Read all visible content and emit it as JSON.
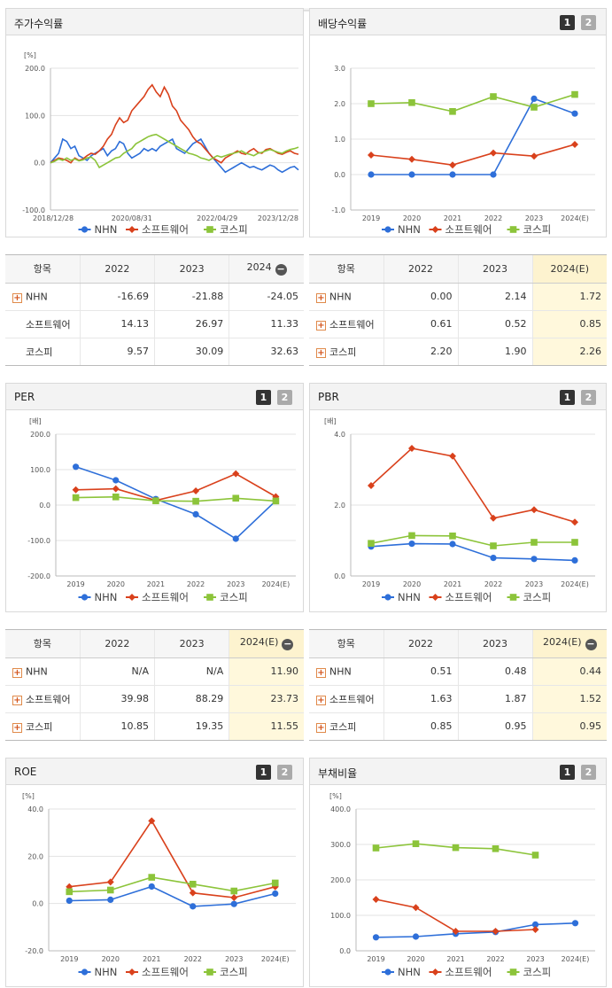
{
  "colors": {
    "NHN": "#2e6fd9",
    "소프트웨어": "#d9411c",
    "코스피": "#8cc43a"
  },
  "charts": {
    "stock": {
      "title": "주가수익률",
      "unit": "[%]",
      "chart_data": {
        "type": "line",
        "title": "주가수익률",
        "ylim": [
          -100,
          200
        ],
        "yticks": [
          "200.0",
          "100.0",
          "0.0",
          "-100.0"
        ],
        "xtick_labels": [
          "2018/12/28",
          "2020/08/31",
          "2022/04/29",
          "2023/12/28"
        ],
        "xtick_index": [
          0,
          20,
          41,
          61
        ],
        "series": [
          {
            "name": "NHN",
            "values": [
              0,
              10,
              20,
              50,
              45,
              30,
              35,
              15,
              10,
              5,
              15,
              20,
              25,
              30,
              15,
              25,
              30,
              45,
              40,
              20,
              10,
              15,
              20,
              30,
              25,
              30,
              25,
              35,
              40,
              45,
              50,
              30,
              25,
              20,
              30,
              40,
              45,
              50,
              35,
              20,
              10,
              0,
              -10,
              -20,
              -15,
              -10,
              -5,
              0,
              -5,
              -10,
              -8,
              -12,
              -15,
              -10,
              -5,
              -8,
              -15,
              -20,
              -15,
              -10,
              -8,
              -15
            ]
          },
          {
            "name": "소프트웨어",
            "values": [
              0,
              5,
              10,
              8,
              5,
              0,
              10,
              5,
              8,
              15,
              20,
              18,
              25,
              35,
              50,
              60,
              80,
              95,
              85,
              90,
              110,
              120,
              130,
              140,
              155,
              165,
              150,
              140,
              160,
              145,
              120,
              110,
              90,
              80,
              70,
              55,
              45,
              40,
              30,
              20,
              10,
              5,
              0,
              10,
              15,
              20,
              25,
              20,
              18,
              25,
              30,
              22,
              20,
              28,
              30,
              25,
              20,
              18,
              22,
              25,
              20,
              18
            ]
          },
          {
            "name": "코스피",
            "values": [
              0,
              3,
              8,
              5,
              10,
              5,
              8,
              4,
              6,
              10,
              12,
              5,
              -10,
              -5,
              0,
              5,
              10,
              12,
              20,
              25,
              30,
              40,
              45,
              50,
              55,
              58,
              60,
              55,
              50,
              45,
              40,
              35,
              30,
              25,
              20,
              18,
              15,
              10,
              8,
              5,
              10,
              15,
              12,
              15,
              18,
              20,
              22,
              25,
              20,
              18,
              15,
              20,
              22,
              25,
              28,
              25,
              22,
              20,
              25,
              28,
              30,
              33
            ]
          }
        ]
      }
    },
    "dividend": {
      "title": "배당수익률",
      "pages": [
        "1",
        "2"
      ],
      "chart_data": {
        "type": "line",
        "title": "배당수익률",
        "categories": [
          "2019",
          "2020",
          "2021",
          "2022",
          "2023",
          "2024(E)"
        ],
        "ylim": [
          -1,
          3
        ],
        "yticks": [
          "3.0",
          "2.0",
          "1.0",
          "0.0",
          "-1.0"
        ],
        "series": [
          {
            "name": "NHN",
            "values": [
              0.0,
              0.0,
              0.0,
              0.0,
              2.14,
              1.72
            ]
          },
          {
            "name": "소프트웨어",
            "values": [
              0.55,
              0.43,
              0.27,
              0.61,
              0.52,
              0.85
            ]
          },
          {
            "name": "코스피",
            "values": [
              2.0,
              2.03,
              1.78,
              2.2,
              1.9,
              2.26
            ]
          }
        ]
      }
    },
    "per": {
      "title": "PER",
      "unit": "[배]",
      "pages": [
        "1",
        "2"
      ],
      "chart_data": {
        "type": "line",
        "title": "PER",
        "categories": [
          "2019",
          "2020",
          "2021",
          "2022",
          "2023",
          "2024(E)"
        ],
        "ylim": [
          -200,
          200
        ],
        "yticks": [
          "200.0",
          "100.0",
          "0.0",
          "-100.0",
          "-200.0"
        ],
        "series": [
          {
            "name": "NHN",
            "values": [
              108,
              70,
              17,
              -26,
              -95,
              11.9
            ]
          },
          {
            "name": "소프트웨어",
            "values": [
              43,
              46,
              13,
              40,
              88.29,
              23.73
            ]
          },
          {
            "name": "코스피",
            "values": [
              21,
              23,
              12,
              10.85,
              19.35,
              11.55
            ]
          }
        ]
      }
    },
    "pbr": {
      "title": "PBR",
      "unit": "[배]",
      "pages": [
        "1",
        "2"
      ],
      "chart_data": {
        "type": "line",
        "title": "PBR",
        "categories": [
          "2019",
          "2020",
          "2021",
          "2022",
          "2023",
          "2024(E)"
        ],
        "ylim": [
          0,
          4
        ],
        "yticks": [
          "4.0",
          "2.0",
          "0.0"
        ],
        "series": [
          {
            "name": "NHN",
            "values": [
              0.83,
              0.91,
              0.9,
              0.51,
              0.48,
              0.44
            ]
          },
          {
            "name": "소프트웨어",
            "values": [
              2.55,
              3.6,
              3.38,
              1.63,
              1.87,
              1.52
            ]
          },
          {
            "name": "코스피",
            "values": [
              0.92,
              1.14,
              1.13,
              0.85,
              0.95,
              0.95
            ]
          }
        ]
      }
    },
    "roe": {
      "title": "ROE",
      "unit": "[%]",
      "pages": [
        "1",
        "2"
      ],
      "chart_data": {
        "type": "line",
        "title": "ROE",
        "categories": [
          "2019",
          "2020",
          "2021",
          "2022",
          "2023",
          "2024(E)"
        ],
        "ylim": [
          -20,
          40
        ],
        "yticks": [
          "40.0",
          "20.0",
          "0.0",
          "-20.0"
        ],
        "series": [
          {
            "name": "NHN",
            "values": [
              1.2,
              1.6,
              7.2,
              -1.2,
              -0.2,
              4.2
            ]
          },
          {
            "name": "소프트웨어",
            "values": [
              7.1,
              9.1,
              35.0,
              4.5,
              2.5,
              7.1
            ]
          },
          {
            "name": "코스피",
            "values": [
              5.0,
              5.7,
              11.1,
              8.2,
              5.3,
              8.7
            ]
          }
        ]
      }
    },
    "debt": {
      "title": "부채비율",
      "unit": "[%]",
      "pages": [
        "1",
        "2"
      ],
      "chart_data": {
        "type": "line",
        "title": "부채비율",
        "categories": [
          "2019",
          "2020",
          "2021",
          "2022",
          "2023",
          "2024(E)"
        ],
        "ylim": [
          0,
          400
        ],
        "yticks": [
          "400.0",
          "300.0",
          "200.0",
          "100.0",
          "0.0"
        ],
        "series": [
          {
            "name": "NHN",
            "values": [
              38,
              40,
              48,
              53,
              74,
              78
            ]
          },
          {
            "name": "소프트웨어",
            "values": [
              145,
              122,
              55,
              55,
              60,
              null
            ]
          },
          {
            "name": "코스피",
            "values": [
              290,
              302,
              291,
              288,
              270,
              null
            ]
          }
        ]
      }
    }
  },
  "tables": {
    "stock": {
      "header": [
        "항목",
        "2022",
        "2023",
        "2024"
      ],
      "collapse_icon": "minus-circle-icon",
      "rows": [
        {
          "name": "NHN",
          "expand": true,
          "values": [
            "-16.69",
            "-21.88",
            "-24.05"
          ]
        },
        {
          "name": "소프트웨어",
          "expand": false,
          "values": [
            "14.13",
            "26.97",
            "11.33"
          ]
        },
        {
          "name": "코스피",
          "expand": false,
          "values": [
            "9.57",
            "30.09",
            "32.63"
          ]
        }
      ]
    },
    "dividend": {
      "header": [
        "항목",
        "2022",
        "2023",
        "2024(E)"
      ],
      "rows": [
        {
          "name": "NHN",
          "expand": true,
          "values": [
            "0.00",
            "2.14",
            "1.72"
          ]
        },
        {
          "name": "소프트웨어",
          "expand": true,
          "values": [
            "0.61",
            "0.52",
            "0.85"
          ]
        },
        {
          "name": "코스피",
          "expand": true,
          "values": [
            "2.20",
            "1.90",
            "2.26"
          ]
        }
      ]
    },
    "per": {
      "header": [
        "항목",
        "2022",
        "2023",
        "2024(E)"
      ],
      "collapse_icon": "minus-circle-icon",
      "rows": [
        {
          "name": "NHN",
          "expand": true,
          "values": [
            "N/A",
            "N/A",
            "11.90"
          ]
        },
        {
          "name": "소프트웨어",
          "expand": true,
          "values": [
            "39.98",
            "88.29",
            "23.73"
          ]
        },
        {
          "name": "코스피",
          "expand": true,
          "values": [
            "10.85",
            "19.35",
            "11.55"
          ]
        }
      ]
    },
    "pbr": {
      "header": [
        "항목",
        "2022",
        "2023",
        "2024(E)"
      ],
      "collapse_icon": "minus-circle-icon",
      "rows": [
        {
          "name": "NHN",
          "expand": true,
          "values": [
            "0.51",
            "0.48",
            "0.44"
          ]
        },
        {
          "name": "소프트웨어",
          "expand": true,
          "values": [
            "1.63",
            "1.87",
            "1.52"
          ]
        },
        {
          "name": "코스피",
          "expand": true,
          "values": [
            "0.85",
            "0.95",
            "0.95"
          ]
        }
      ]
    }
  }
}
